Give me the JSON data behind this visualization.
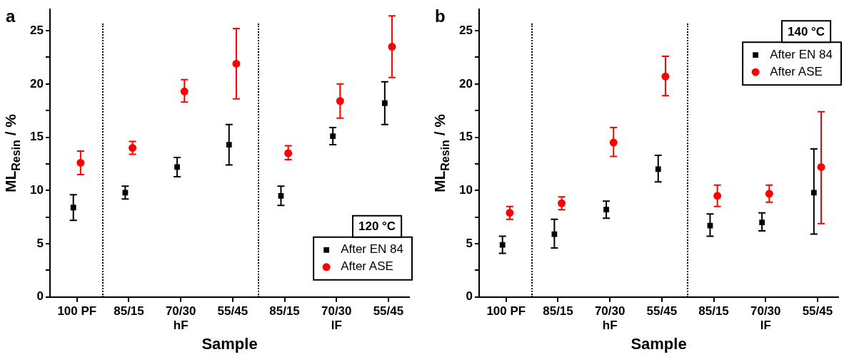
{
  "chart_data": [
    {
      "type": "scatter",
      "title": "a",
      "xlabel": "Sample",
      "ylabel": "ML$_{Resin}$ / %",
      "legend_title": "120 °C",
      "legend": "bottom right",
      "grid": false,
      "categories": [
        "100 PF",
        "85/15",
        "70/30\nhF",
        "55/45",
        "85/15",
        "70/30\nlF",
        "55/45"
      ],
      "ylim": [
        0,
        27
      ],
      "yticks": [
        0,
        {
          "value": 2.5,
          "label": null
        },
        5,
        {
          "value": 7.5,
          "label": null
        },
        10,
        {
          "value": 12.5,
          "label": null
        },
        15,
        {
          "value": 17.5,
          "label": null
        },
        20,
        {
          "value": 22.5,
          "label": null
        },
        25
      ],
      "series": [
        {
          "name": "After EN 84",
          "color": "#000000",
          "marker": "square",
          "values": [
            8.4,
            9.8,
            12.2,
            14.3,
            9.5,
            15.1,
            18.2
          ],
          "errors": [
            [
              7.2,
              9.6
            ],
            [
              9.2,
              10.4
            ],
            [
              11.3,
              13.1
            ],
            [
              12.4,
              16.2
            ],
            [
              8.6,
              10.4
            ],
            [
              14.3,
              15.9
            ],
            [
              16.2,
              20.2
            ]
          ]
        },
        {
          "name": "After ASE",
          "color": "#ff0000",
          "marker": "circle",
          "values": [
            12.6,
            14.0,
            19.3,
            21.9,
            13.5,
            18.4,
            23.5
          ],
          "errors": [
            [
              11.5,
              13.7
            ],
            [
              13.4,
              14.6
            ],
            [
              18.3,
              20.4
            ],
            [
              18.6,
              25.2
            ],
            [
              12.9,
              14.2
            ],
            [
              16.8,
              20.0
            ],
            [
              20.6,
              26.4
            ]
          ]
        }
      ]
    },
    {
      "type": "scatter",
      "title": "b",
      "xlabel": "Sample",
      "ylabel": "ML$_{Resin}$ / %",
      "legend_title": "140 °C",
      "legend": "top right",
      "grid": false,
      "categories": [
        "100 PF",
        "85/15",
        "70/30\nhF",
        "55/45",
        "85/15",
        "70/30\nlF",
        "55/45"
      ],
      "ylim": [
        0,
        27
      ],
      "yticks": [
        0,
        {
          "value": 2.5,
          "label": null
        },
        5,
        {
          "value": 7.5,
          "label": null
        },
        10,
        {
          "value": 12.5,
          "label": null
        },
        15,
        {
          "value": 17.5,
          "label": null
        },
        20,
        {
          "value": 22.5,
          "label": null
        },
        25
      ],
      "series": [
        {
          "name": "After EN 84",
          "color": "#000000",
          "marker": "square",
          "values": [
            4.9,
            5.9,
            8.2,
            12.0,
            6.7,
            7.0,
            9.8
          ],
          "errors": [
            [
              4.1,
              5.7
            ],
            [
              4.6,
              7.3
            ],
            [
              7.4,
              9.0
            ],
            [
              10.8,
              13.3
            ],
            [
              5.7,
              7.8
            ],
            [
              6.2,
              7.9
            ],
            [
              5.9,
              13.9
            ]
          ]
        },
        {
          "name": "After ASE",
          "color": "#ff0000",
          "marker": "circle",
          "values": [
            7.9,
            8.8,
            14.5,
            20.7,
            9.5,
            9.7,
            12.2
          ],
          "errors": [
            [
              7.3,
              8.5
            ],
            [
              8.2,
              9.4
            ],
            [
              13.2,
              15.9
            ],
            [
              18.9,
              22.6
            ],
            [
              8.5,
              10.5
            ],
            [
              8.9,
              10.5
            ],
            [
              6.9,
              17.4
            ]
          ]
        }
      ]
    }
  ]
}
